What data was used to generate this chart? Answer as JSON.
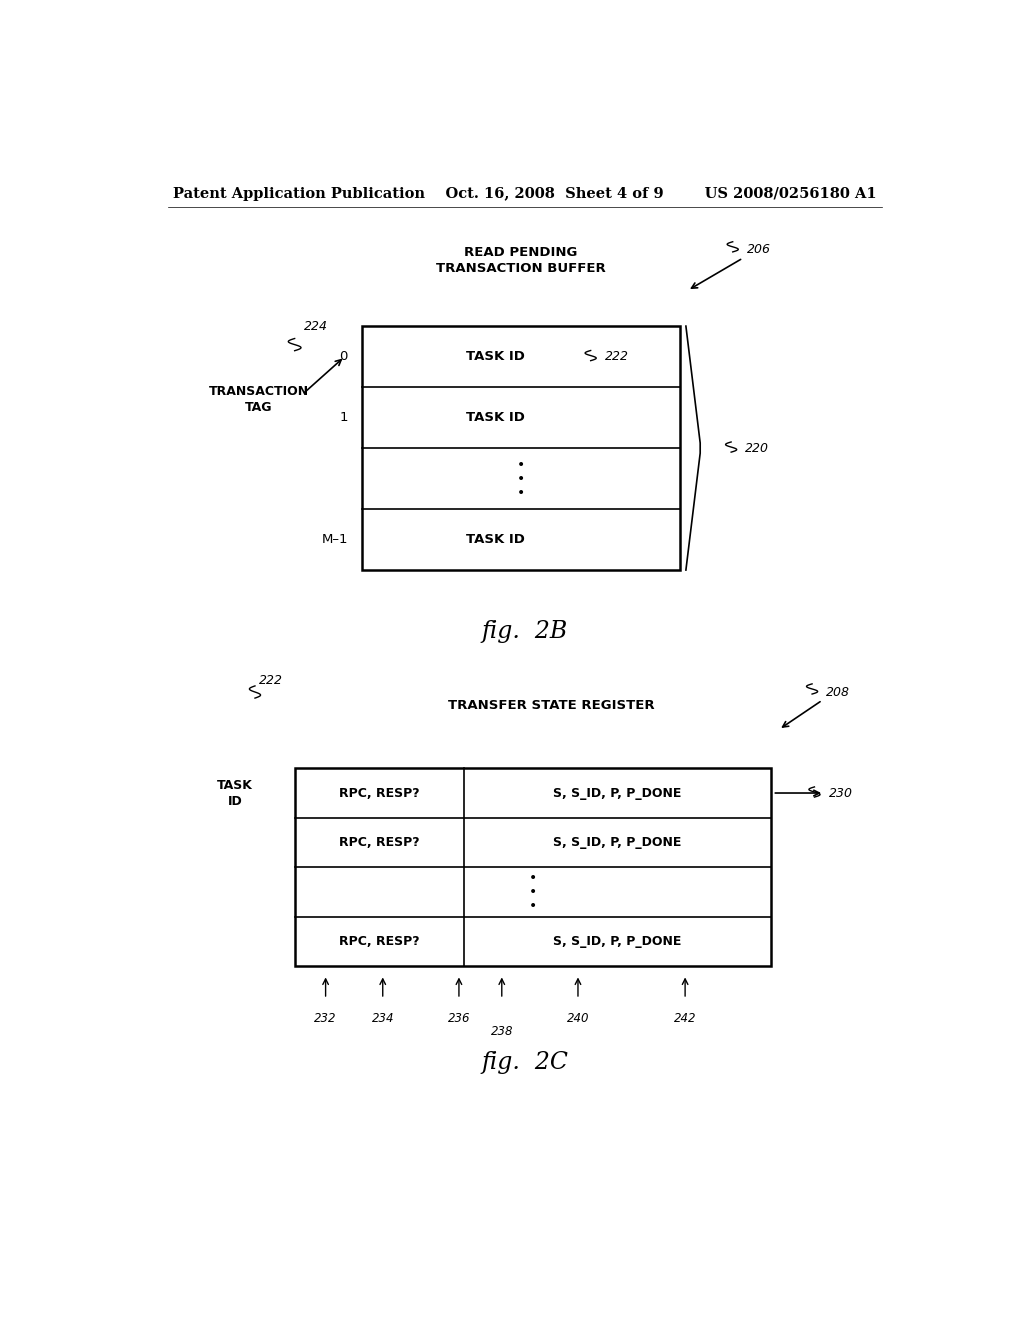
{
  "bg_color": "#ffffff",
  "header_text": "Patent Application Publication    Oct. 16, 2008  Sheet 4 of 9        US 2008/0256180 A1",
  "header_fontsize": 11,
  "fig2b": {
    "title": "READ PENDING\nTRANSACTION BUFFER",
    "label_206": "206",
    "label_224": "224",
    "label_220": "220",
    "label_222": "222",
    "left_label": "TRANSACTION\nTAG",
    "rows": [
      "TASK ID",
      "TASK ID",
      "•\n•\n•",
      "TASK ID"
    ],
    "row_labels": [
      "0",
      "1",
      "",
      "M–1"
    ],
    "fig_label": "fig.  2B"
  },
  "fig2c": {
    "title": "TRANSFER STATE REGISTER",
    "label_208": "208",
    "label_222": "222",
    "label_230": "230",
    "left_label": "TASK\nID",
    "col1_text": "RPC, RESP?",
    "col2_text": "S, S_ID, P, P_DONE",
    "bottom_labels": [
      "232",
      "234",
      "236",
      "238",
      "240",
      "242"
    ],
    "fig_label": "fig.  2C"
  }
}
